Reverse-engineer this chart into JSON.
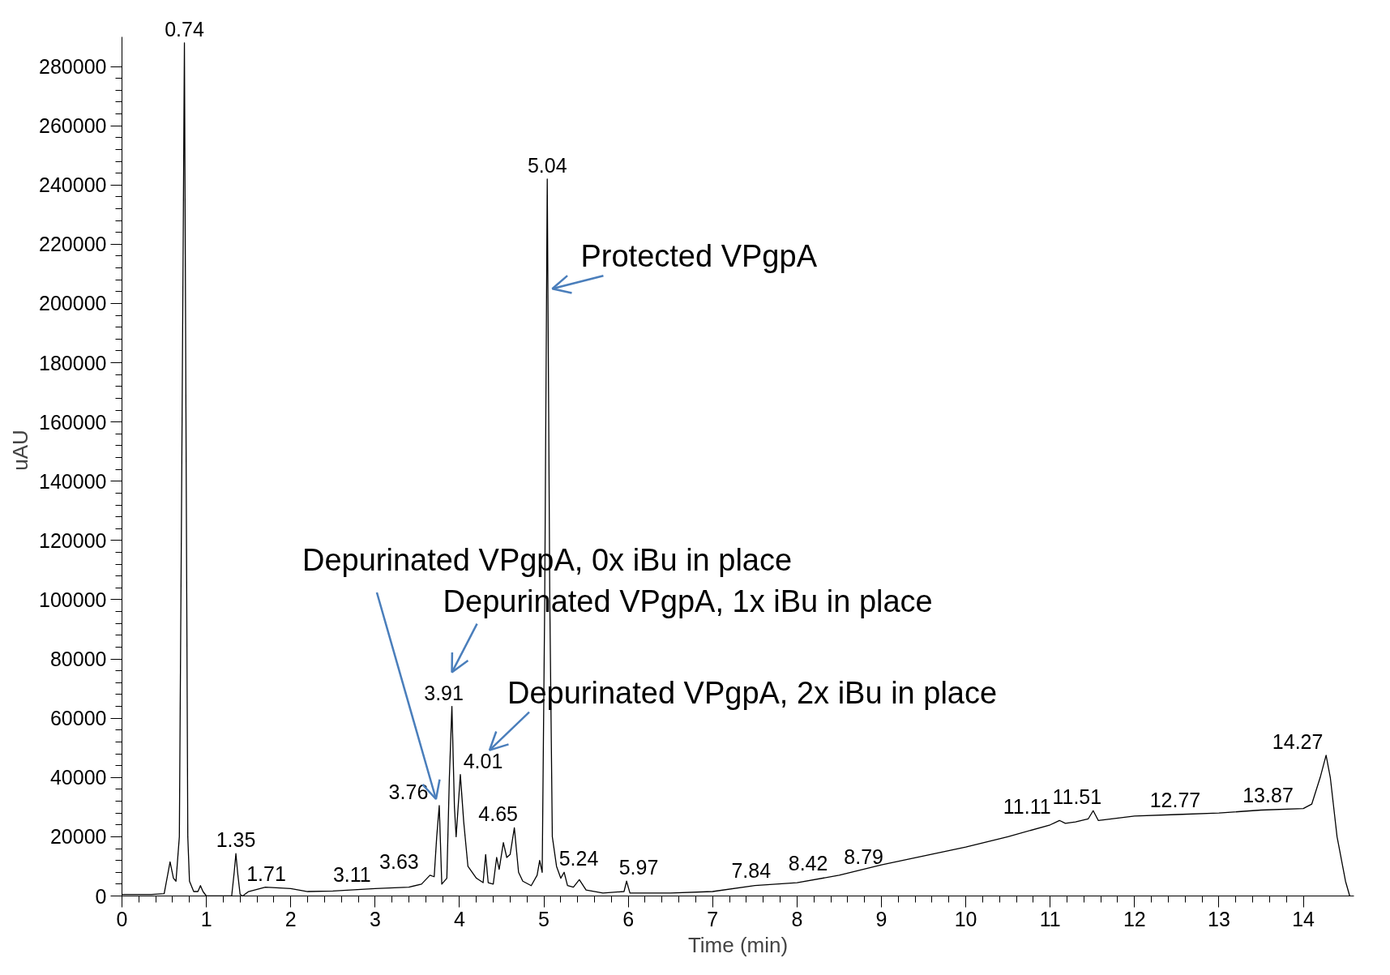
{
  "chart_data": {
    "type": "line",
    "xlabel": "Time (min)",
    "ylabel": "uAU",
    "xlim": [
      0,
      14.6
    ],
    "ylim": [
      0,
      290000
    ],
    "xticks": [
      0,
      1,
      2,
      3,
      4,
      5,
      6,
      7,
      8,
      9,
      10,
      11,
      12,
      13,
      14
    ],
    "yticks": [
      0,
      20000,
      40000,
      60000,
      80000,
      100000,
      120000,
      140000,
      160000,
      180000,
      200000,
      220000,
      240000,
      260000,
      280000
    ],
    "grid": false,
    "marker": "none",
    "line_style": "solid",
    "series": [
      {
        "color": "#000000",
        "x": [
          0,
          0.35,
          0.5,
          0.57,
          0.61,
          0.64,
          0.68,
          0.71,
          0.74,
          0.76,
          0.78,
          0.8,
          0.85,
          0.9,
          0.93,
          0.96,
          1.0,
          1.3,
          1.33,
          1.35,
          1.37,
          1.4,
          1.43,
          1.5,
          1.7,
          2.0,
          2.2,
          2.5,
          3.0,
          3.4,
          3.55,
          3.65,
          3.7,
          3.73,
          3.76,
          3.79,
          3.85,
          3.88,
          3.91,
          3.94,
          3.96,
          4.01,
          4.05,
          4.1,
          4.2,
          4.28,
          4.31,
          4.34,
          4.4,
          4.44,
          4.47,
          4.52,
          4.56,
          4.6,
          4.65,
          4.7,
          4.75,
          4.85,
          4.92,
          4.95,
          4.98,
          5.01,
          5.04,
          5.07,
          5.1,
          5.15,
          5.2,
          5.24,
          5.28,
          5.35,
          5.42,
          5.5,
          5.7,
          5.95,
          5.98,
          6.02,
          6.5,
          7.0,
          7.5,
          8.0,
          8.5,
          9.0,
          9.5,
          10.0,
          10.5,
          11.0,
          11.11,
          11.18,
          11.3,
          11.45,
          11.51,
          11.57,
          12.0,
          12.5,
          13.0,
          13.5,
          14.0,
          14.1,
          14.2,
          14.27,
          14.32,
          14.4,
          14.5,
          14.55
        ],
        "values": [
          500,
          500,
          800,
          11500,
          6000,
          5000,
          20000,
          150000,
          288000,
          150000,
          20000,
          5000,
          1500,
          1500,
          3500,
          1500,
          0,
          0,
          8000,
          14300,
          8000,
          500,
          0,
          1500,
          3000,
          2500,
          1500,
          1700,
          2500,
          3000,
          4000,
          7000,
          6500,
          20000,
          30500,
          4000,
          6000,
          40000,
          64000,
          30000,
          20000,
          41000,
          25000,
          10000,
          6000,
          4500,
          14000,
          4500,
          4000,
          13000,
          9000,
          18000,
          13000,
          14000,
          23000,
          8000,
          5000,
          3500,
          7000,
          12000,
          8000,
          100000,
          242000,
          100000,
          20000,
          10000,
          6000,
          8000,
          3500,
          3000,
          5500,
          2000,
          1000,
          1500,
          5000,
          1000,
          1000,
          1500,
          3500,
          4500,
          7000,
          10500,
          13500,
          16500,
          20000,
          24000,
          25500,
          24500,
          25000,
          26000,
          28800,
          25500,
          27000,
          27500,
          28000,
          29000,
          29500,
          31000,
          40000,
          47500,
          40000,
          20000,
          5000,
          0
        ]
      }
    ],
    "annotations": [
      {
        "text": "0.74",
        "x": 0.74,
        "y": 288000
      },
      {
        "text": "1.35",
        "x": 1.35,
        "y": 14300
      },
      {
        "text": "1.71",
        "x": 1.71,
        "y": 3000
      },
      {
        "text": "3.11",
        "x": 3.11,
        "y": 2500
      },
      {
        "text": "3.63",
        "x": 3.63,
        "y": 7000
      },
      {
        "text": "3.76",
        "x": 3.76,
        "y": 30500
      },
      {
        "text": "3.91",
        "x": 3.91,
        "y": 64000
      },
      {
        "text": "4.01",
        "x": 4.01,
        "y": 41000
      },
      {
        "text": "4.65",
        "x": 4.65,
        "y": 23000
      },
      {
        "text": "5.04",
        "x": 5.04,
        "y": 242000
      },
      {
        "text": "5.24",
        "x": 5.24,
        "y": 8000
      },
      {
        "text": "5.97",
        "x": 5.97,
        "y": 5000
      },
      {
        "text": "7.84",
        "x": 7.84,
        "y": 4000
      },
      {
        "text": "8.42",
        "x": 8.42,
        "y": 6500
      },
      {
        "text": "8.79",
        "x": 8.79,
        "y": 8500
      },
      {
        "text": "11.11",
        "x": 11.11,
        "y": 25500
      },
      {
        "text": "11.51",
        "x": 11.51,
        "y": 28800
      },
      {
        "text": "12.77",
        "x": 12.77,
        "y": 27700
      },
      {
        "text": "13.87",
        "x": 13.87,
        "y": 29400
      },
      {
        "text": "14.27",
        "x": 14.27,
        "y": 47500
      },
      {
        "text": "Protected VPgpA",
        "x": 5.1,
        "y": 205000
      },
      {
        "text": "Depurinated VPgpA, 0x iBu in place",
        "x": 3.76,
        "y": 30500
      },
      {
        "text": "Depurinated VPgpA, 1x iBu in place",
        "x": 3.91,
        "y": 64000
      },
      {
        "text": "Depurinated VPgpA, 2x iBu in place",
        "x": 4.01,
        "y": 41000
      }
    ]
  }
}
